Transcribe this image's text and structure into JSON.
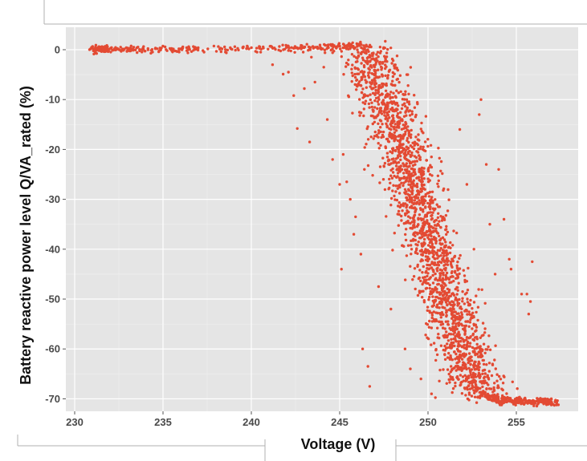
{
  "chart_data": {
    "type": "scatter",
    "xlabel": "Voltage (V)",
    "ylabel": "Battery reactive power level Q/VA_rated (%)",
    "xlim": [
      229.5,
      258.5
    ],
    "ylim": [
      -72.5,
      4.5
    ],
    "x_ticks": [
      230,
      235,
      240,
      245,
      250,
      255
    ],
    "y_ticks": [
      0,
      -10,
      -20,
      -30,
      -40,
      -50,
      -60,
      -70
    ],
    "x_tick_labels": [
      "230",
      "235",
      "240",
      "245",
      "250",
      "255"
    ],
    "y_tick_labels": [
      "0",
      "-10",
      "-20",
      "-30",
      "-40",
      "-50",
      "-60",
      "-70"
    ],
    "grid": true,
    "legend": "none",
    "series": [
      {
        "color": "#e34a33",
        "description_points": [
          [
            230.9,
            0.0
          ],
          [
            232.0,
            0.1
          ],
          [
            235.0,
            0.0
          ],
          [
            240.0,
            0.2
          ],
          [
            244.0,
            0.5
          ],
          [
            246.5,
            0.8
          ],
          [
            247.0,
            -5.0
          ],
          [
            247.6,
            -10.0
          ],
          [
            248.1,
            -15.0
          ],
          [
            248.6,
            -20.0
          ],
          [
            249.0,
            -25.0
          ],
          [
            249.4,
            -30.0
          ],
          [
            249.8,
            -35.0
          ],
          [
            250.2,
            -40.0
          ],
          [
            250.6,
            -45.0
          ],
          [
            251.0,
            -50.0
          ],
          [
            251.5,
            -55.0
          ],
          [
            252.0,
            -60.0
          ],
          [
            252.5,
            -65.0
          ],
          [
            253.0,
            -69.0
          ],
          [
            254.0,
            -70.2
          ],
          [
            255.0,
            -70.4
          ],
          [
            256.0,
            -70.5
          ],
          [
            257.3,
            -70.6
          ]
        ],
        "outliers": [
          [
            241.2,
            -3.0
          ],
          [
            241.8,
            -4.9
          ],
          [
            242.1,
            -4.5
          ],
          [
            242.4,
            -9.2
          ],
          [
            242.6,
            -15.8
          ],
          [
            243.0,
            -7.8
          ],
          [
            243.4,
            -1.5
          ],
          [
            243.6,
            -6.5
          ],
          [
            243.3,
            -18.5
          ],
          [
            244.1,
            -3.5
          ],
          [
            244.3,
            -14.0
          ],
          [
            244.6,
            -22.0
          ],
          [
            245.0,
            -27.0
          ],
          [
            245.2,
            -21.0
          ],
          [
            245.4,
            -26.5
          ],
          [
            245.6,
            -30.0
          ],
          [
            245.9,
            -33.5
          ],
          [
            245.1,
            -44.0
          ],
          [
            245.8,
            -37.0
          ],
          [
            246.2,
            -41.0
          ],
          [
            246.4,
            -24.0
          ],
          [
            246.3,
            -60.0
          ],
          [
            246.6,
            -63.5
          ],
          [
            246.7,
            -67.5
          ],
          [
            247.2,
            -47.5
          ],
          [
            247.9,
            -52.0
          ],
          [
            248.7,
            -60.0
          ],
          [
            249.0,
            -64.0
          ],
          [
            249.6,
            -66.0
          ],
          [
            250.2,
            -69.0
          ],
          [
            251.2,
            -57.0
          ],
          [
            252.6,
            -40.0
          ],
          [
            252.9,
            -13.0
          ],
          [
            253.0,
            -10.0
          ],
          [
            253.3,
            -23.0
          ],
          [
            253.5,
            -35.0
          ],
          [
            254.0,
            -24.0
          ],
          [
            254.3,
            -34.0
          ],
          [
            254.6,
            -42.0
          ],
          [
            254.7,
            -44.0
          ],
          [
            255.3,
            -49.0
          ],
          [
            255.6,
            -49.0
          ],
          [
            255.7,
            -53.0
          ],
          [
            255.9,
            -42.5
          ],
          [
            255.8,
            -50.5
          ],
          [
            251.8,
            -16.0
          ],
          [
            252.2,
            -27.0
          ],
          [
            253.8,
            -45.0
          ]
        ]
      }
    ]
  }
}
